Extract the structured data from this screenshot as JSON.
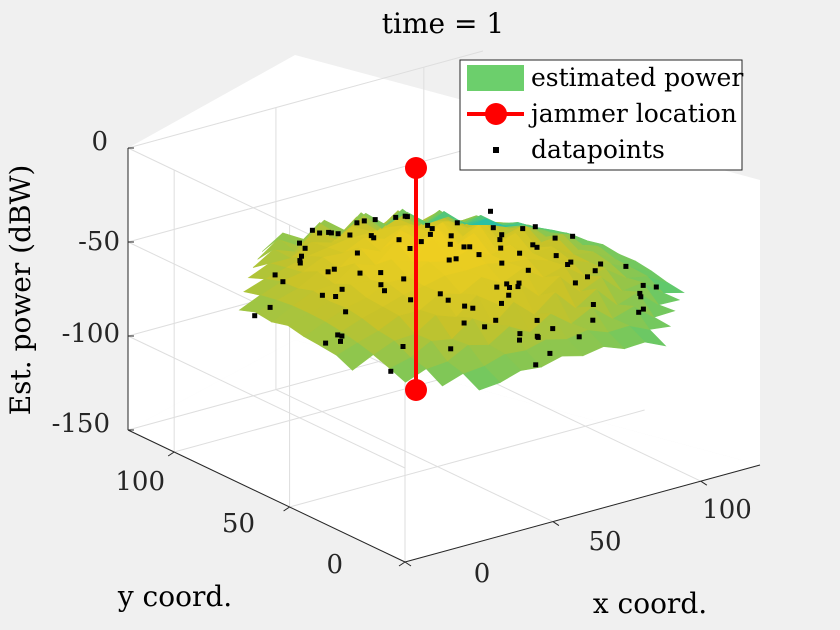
{
  "chart_data": {
    "type": "surface3d",
    "title": "time = 1",
    "xlabel": "x coord.",
    "ylabel": "y coord.",
    "zlabel": "Est. power (dBW)",
    "xticks": [
      "0",
      "50",
      "100"
    ],
    "yticks": [
      "0",
      "50",
      "100"
    ],
    "zticks": [
      "0",
      "-50",
      "-100",
      "-150"
    ],
    "xlim": [
      0,
      120
    ],
    "ylim": [
      0,
      120
    ],
    "zlim": [
      -150,
      0
    ],
    "grid": true,
    "legend_position": "top-right",
    "legend": [
      {
        "label": "estimated power",
        "kind": "patch",
        "color": "#6ccf6c"
      },
      {
        "label": "jammer location",
        "kind": "line-marker",
        "color": "#ff0000"
      },
      {
        "label": "datapoints",
        "kind": "point",
        "color": "#000000"
      }
    ],
    "jammer": {
      "x": 60,
      "y": 60,
      "z_top": -10,
      "z_bottom": -130
    },
    "colormap": [
      "#3e26a8",
      "#2a8ee8",
      "#17bdb8",
      "#64c969",
      "#c7c229",
      "#f9d21e"
    ],
    "colors": {
      "background": "#f0f0f0",
      "axes": "#ffffff",
      "grid": "#dedede",
      "jammer": "#ff0000"
    }
  }
}
